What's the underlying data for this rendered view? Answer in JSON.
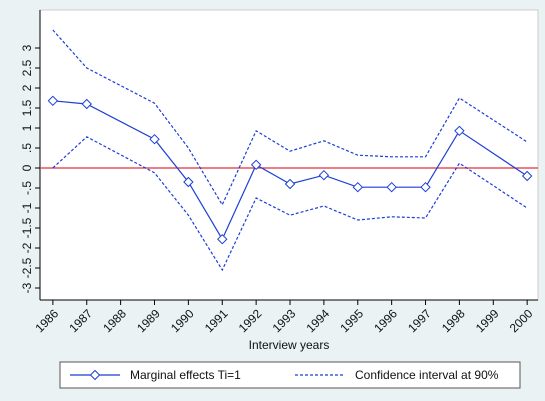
{
  "chart_data": {
    "type": "line",
    "x_label": "Interview years",
    "x": [
      1986,
      1987,
      1989,
      1990,
      1991,
      1992,
      1993,
      1994,
      1995,
      1996,
      1997,
      1998,
      2000
    ],
    "series": [
      {
        "name": "Marginal effects Ti=1",
        "color": "#1a3fd6",
        "style": "solid",
        "marker": "diamond",
        "values": [
          1.68,
          1.6,
          0.72,
          -0.35,
          -1.78,
          0.08,
          -0.4,
          -0.18,
          -0.48,
          -0.48,
          -0.48,
          0.93,
          -0.2
        ]
      },
      {
        "name": "Confidence interval at 90%",
        "color": "#1a3fd6",
        "style": "dashed",
        "values": [
          3.45,
          2.5,
          1.62,
          0.5,
          -0.92,
          0.93,
          0.42,
          0.68,
          0.32,
          0.28,
          0.28,
          1.75,
          0.65
        ]
      },
      {
        "color": "#1a3fd6",
        "style": "dashed",
        "values": [
          0,
          0.78,
          -0.12,
          -1.18,
          -2.55,
          -0.75,
          -1.18,
          -0.95,
          -1.3,
          -1.22,
          -1.25,
          0.12,
          -1.0
        ]
      }
    ],
    "xlim": [
      1985.62,
      2000.32
    ],
    "xticks": [
      1986,
      1987,
      1988,
      1989,
      1990,
      1991,
      1992,
      1993,
      1994,
      1995,
      1996,
      1997,
      1998,
      1999,
      2000
    ],
    "ylim": [
      -3.3,
      3.95
    ],
    "yticks": [
      -3,
      {
        "value": -2.5,
        "label": "-2.5"
      },
      -2,
      {
        "value": -1.5,
        "label": "-1.5"
      },
      -1,
      {
        "value": -0.5,
        "label": "-.5"
      },
      0,
      {
        "value": 0.5,
        "label": ".5"
      },
      1,
      {
        "value": 1.5,
        "label": "1.5"
      },
      2,
      {
        "value": 2.5,
        "label": "2.5"
      },
      3
    ],
    "reference_line": {
      "value": 0,
      "color": "#e0303a"
    },
    "grid": false
  }
}
